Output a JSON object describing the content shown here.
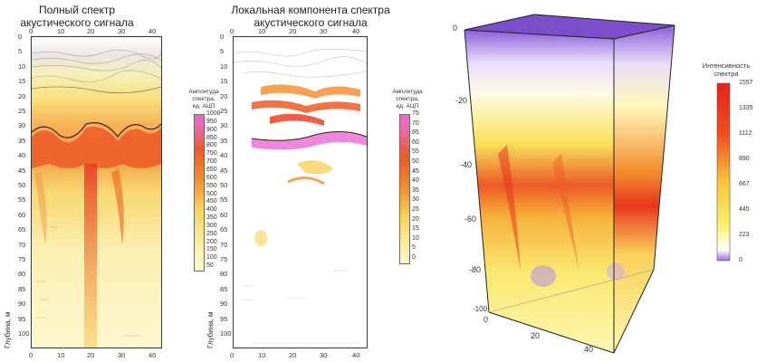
{
  "panel1": {
    "title_line1": "Полный спектр",
    "title_line2": "акустического сигнала",
    "ylabel": "Глубина, м",
    "xticks": [
      "0",
      "10",
      "20",
      "30",
      "40"
    ],
    "yticks": [
      "0",
      "5",
      "10",
      "15",
      "20",
      "25",
      "30",
      "35",
      "40",
      "45",
      "50",
      "55",
      "60",
      "65",
      "70",
      "75",
      "80",
      "85",
      "90",
      "95",
      "100"
    ],
    "legend_title": [
      "Амплитуда",
      "спектра,",
      "ед. АЦП"
    ],
    "legend_ticks": [
      "1000",
      "950",
      "900",
      "850",
      "800",
      "750",
      "700",
      "650",
      "600",
      "550",
      "500",
      "450",
      "400",
      "350",
      "300",
      "250",
      "200",
      "150",
      "100",
      "50"
    ]
  },
  "panel2": {
    "title_line1": "Локальная компонента спектра",
    "title_line2": "акустического сигнала",
    "ylabel": "Глубина, м",
    "xticks": [
      "0",
      "10",
      "20",
      "30",
      "40"
    ],
    "yticks": [
      "0",
      "5",
      "10",
      "15",
      "20",
      "25",
      "30",
      "35",
      "40",
      "45",
      "50",
      "55",
      "60",
      "65",
      "70",
      "75",
      "80",
      "85",
      "90",
      "95",
      "100"
    ],
    "legend_title": [
      "Амплитуда",
      "спектра,",
      "ед. АЦП"
    ],
    "legend_ticks": [
      "75",
      "70",
      "65",
      "60",
      "55",
      "50",
      "45",
      "40",
      "35",
      "30",
      "25",
      "20",
      "15",
      "10",
      "5",
      "0"
    ]
  },
  "panel3": {
    "legend_title": [
      "Интенсивность",
      "спектра"
    ],
    "legend_ticks": [
      "1557",
      "1335",
      "1112",
      "890",
      "667",
      "445",
      "223",
      "0"
    ],
    "zticks": [
      "0",
      "-20",
      "-40",
      "-60",
      "-80",
      "-100"
    ],
    "xticks": [
      "0",
      "20",
      "40"
    ]
  },
  "colors": {
    "violet": "#9b6fe0",
    "purple_cap": "#7a4fc9",
    "yellow_light": "#fdf7b0",
    "yellow": "#f9e35a",
    "orange": "#f28a2c",
    "red": "#e8361e",
    "magenta": "#e76ad6"
  }
}
